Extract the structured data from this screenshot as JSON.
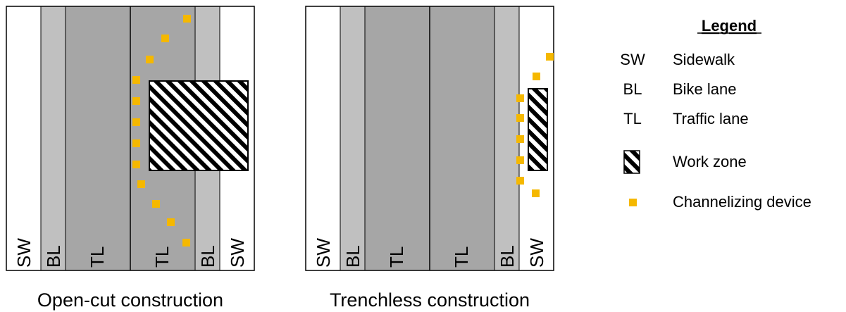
{
  "colors": {
    "sidewalk": "#ffffff",
    "bike_lane": "#c0c0c0",
    "traffic_lane": "#a6a6a6",
    "channelizing_device": "#f5b800",
    "outline": "#000000"
  },
  "diagrams": [
    {
      "caption": "Open-cut construction",
      "lanes": [
        "SW",
        "BL",
        "TL",
        "TL",
        "BL",
        "SW"
      ]
    },
    {
      "caption": "Trenchless construction",
      "lanes": [
        "SW",
        "BL",
        "TL",
        "TL",
        "BL",
        "SW"
      ]
    }
  ],
  "legend": {
    "title": "Legend",
    "items": [
      {
        "symbol": "SW",
        "label": "Sidewalk"
      },
      {
        "symbol": "BL",
        "label": "Bike lane"
      },
      {
        "symbol": "TL",
        "label": "Traffic lane"
      },
      {
        "symbol": "hatch-icon",
        "label": "Work zone"
      },
      {
        "symbol": "square-icon",
        "label": "Channelizing device"
      }
    ]
  }
}
